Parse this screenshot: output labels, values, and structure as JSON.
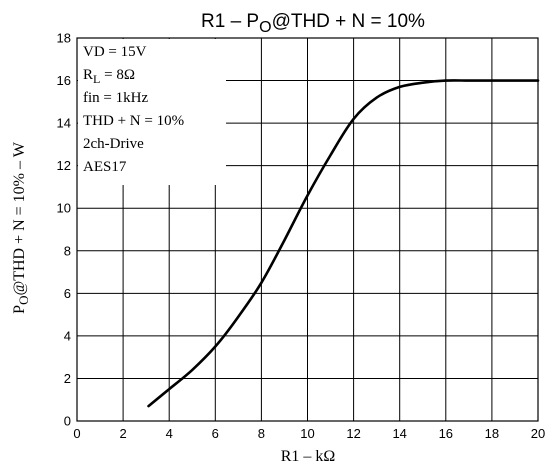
{
  "chart_data": {
    "type": "line",
    "title": {
      "pre": "R1  –  P",
      "sub": "O",
      "post": "@THD + N = 10%"
    },
    "xlabel": "R1  –  kΩ",
    "ylabel": {
      "pre": "P",
      "sub": "O",
      "post": "@THD + N = 10%  –  W"
    },
    "xlim": [
      0,
      20
    ],
    "ylim": [
      0,
      18
    ],
    "x_ticks": [
      "0",
      "2",
      "4",
      "6",
      "8",
      "10",
      "12",
      "14",
      "16",
      "18",
      "20"
    ],
    "y_ticks": [
      "0",
      "2",
      "4",
      "6",
      "8",
      "10",
      "12",
      "14",
      "16",
      "18"
    ],
    "grid": true,
    "annotations": [
      {
        "text": "VD = 15V"
      },
      {
        "pre": "R",
        "sub": "L",
        "post": " = 8Ω"
      },
      {
        "text": "fin = 1kHz"
      },
      {
        "text": "THD + N = 10%"
      },
      {
        "text": "2ch-Drive"
      },
      {
        "text": "AES17"
      }
    ],
    "series": [
      {
        "x": [
          3.1,
          4,
          5,
          6,
          7,
          8,
          9,
          10,
          11,
          12,
          13,
          14,
          15,
          16,
          17,
          18,
          19,
          20
        ],
        "y": [
          0.7,
          1.5,
          2.4,
          3.5,
          4.9,
          6.5,
          8.5,
          10.6,
          12.5,
          14.2,
          15.2,
          15.7,
          15.9,
          16.0,
          16.0,
          16.0,
          16.0,
          16.0
        ]
      }
    ]
  }
}
